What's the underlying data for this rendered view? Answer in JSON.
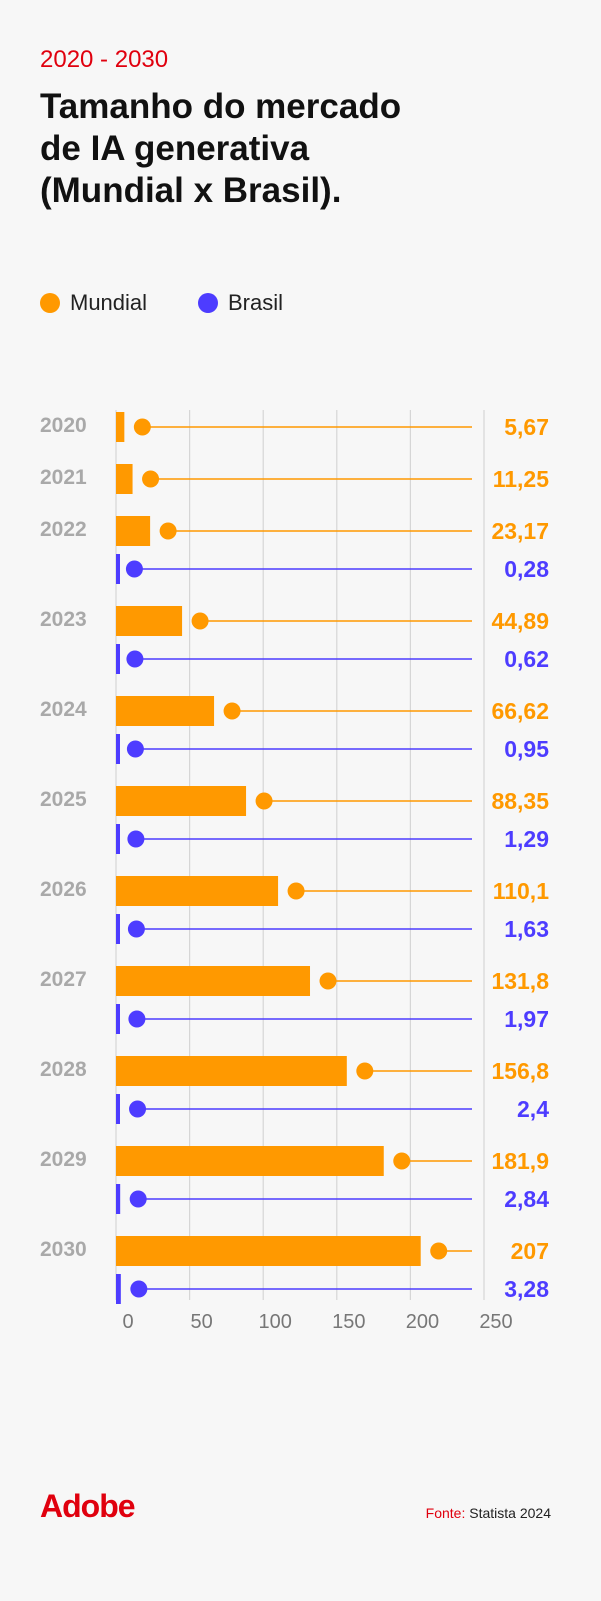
{
  "header": {
    "range": "2020 - 2030",
    "title_lines": [
      "Tamanho do mercado",
      "de IA generativa",
      "(Mundial x Brasil)."
    ]
  },
  "colors": {
    "mundial": "#ff9900",
    "brasil": "#4d3cff",
    "grid": "#d6d6d6",
    "year": "#a9a9a9"
  },
  "footer": {
    "brand": "Adobe",
    "source_label": "Fonte:",
    "source_value": "Statista 2024"
  },
  "chart_data": {
    "type": "bar",
    "orientation": "horizontal",
    "title": "Tamanho do mercado de IA generativa (Mundial x Brasil).",
    "legend": [
      "Mundial",
      "Brasil"
    ],
    "legend_position": "top-left",
    "categories": [
      "2020",
      "2021",
      "2022",
      "2023",
      "2024",
      "2025",
      "2026",
      "2027",
      "2028",
      "2029",
      "2030"
    ],
    "series": [
      {
        "name": "Mundial",
        "values": [
          5.67,
          11.25,
          23.17,
          44.89,
          66.62,
          88.35,
          110.1,
          131.8,
          156.8,
          181.9,
          207
        ],
        "labels": [
          "5,67",
          "11,25",
          "23,17",
          "44,89",
          "66,62",
          "88,35",
          "110,1",
          "131,8",
          "156,8",
          "181,9",
          "207"
        ]
      },
      {
        "name": "Brasil",
        "values": [
          null,
          null,
          0.28,
          0.62,
          0.95,
          1.29,
          1.63,
          1.97,
          2.4,
          2.84,
          3.28
        ],
        "labels": [
          null,
          null,
          "0,28",
          "0,62",
          "0,95",
          "1,29",
          "1,63",
          "1,97",
          "2,4",
          "2,84",
          "3,28"
        ]
      }
    ],
    "xlim": [
      0,
      250
    ],
    "xticks": [
      0,
      50,
      100,
      150,
      200,
      250
    ],
    "xtick_labels": [
      "0",
      "50",
      "100",
      "150",
      "200",
      "250"
    ],
    "grid": true
  }
}
